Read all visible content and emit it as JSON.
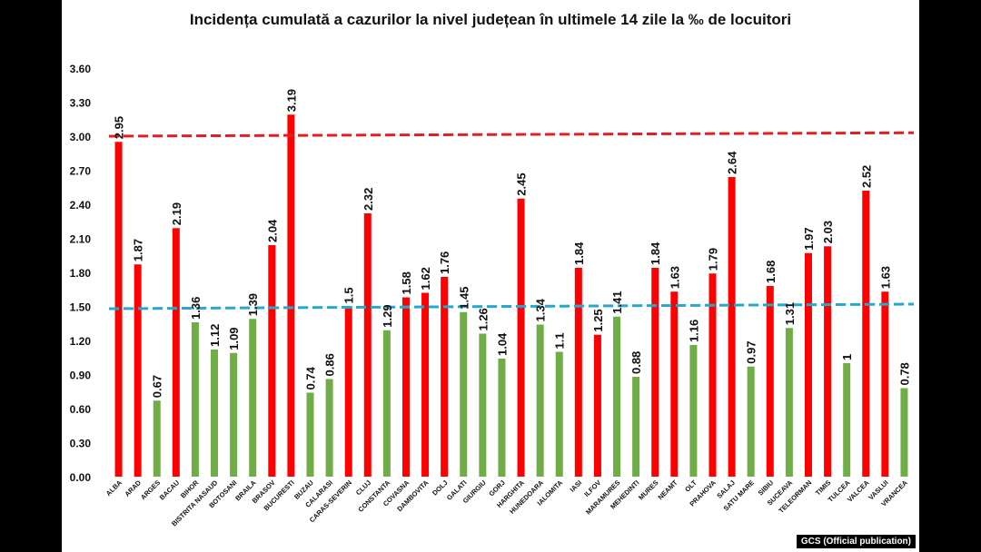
{
  "chart_data": {
    "type": "bar",
    "title": "Incidența cumulată a cazurilor la nivel județean în ultimele 14 zile la ‰ de locuitori",
    "xlabel": "",
    "ylabel": "",
    "ylim": [
      0,
      3.6
    ],
    "y_ticks": [
      "0.00",
      "0.30",
      "0.60",
      "0.90",
      "1.20",
      "1.50",
      "1.80",
      "2.10",
      "2.40",
      "2.70",
      "3.00",
      "3.30",
      "3.60"
    ],
    "categories": [
      "ALBA",
      "ARAD",
      "ARGES",
      "BACAU",
      "BIHOR",
      "BISTRITA NASAUD",
      "BOTOSANI",
      "BRAILA",
      "BRASOV",
      "BUCURESTI",
      "BUZAU",
      "CALARASI",
      "CARAS-SEVERIN",
      "CLUJ",
      "CONSTANTA",
      "COVASNA",
      "DAMBOVITA",
      "DOLJ",
      "GALATI",
      "GIURGIU",
      "GORJ",
      "HARGHITA",
      "HUNEDOARA",
      "IALOMITA",
      "IASI",
      "ILFOV",
      "MARAMURES",
      "MEHEDINTI",
      "MURES",
      "NEAMT",
      "OLT",
      "PRAHOVA",
      "SALAJ",
      "SATU MARE",
      "SIBIU",
      "SUCEAVA",
      "TELEORMAN",
      "TIMIS",
      "TULCEA",
      "VALCEA",
      "VASLUI",
      "VRANCEA"
    ],
    "values": [
      2.95,
      1.87,
      0.67,
      2.19,
      1.36,
      1.12,
      1.09,
      1.39,
      2.04,
      3.19,
      0.74,
      0.86,
      1.5,
      2.32,
      1.29,
      1.58,
      1.62,
      1.76,
      1.45,
      1.26,
      1.04,
      2.45,
      1.34,
      1.1,
      1.84,
      1.25,
      1.41,
      0.88,
      1.84,
      1.63,
      1.16,
      1.79,
      2.64,
      0.97,
      1.68,
      1.31,
      1.97,
      2.03,
      1,
      2.52,
      1.63,
      0.78
    ],
    "value_labels": [
      "2.95",
      "1.87",
      "0.67",
      "2.19",
      "1.36",
      "1.12",
      "1.09",
      "1.39",
      "2.04",
      "3.19",
      "0.74",
      "0.86",
      "1.5",
      "2.32",
      "1.29",
      "1.58",
      "1.62",
      "1.76",
      "1.45",
      "1.26",
      "1.04",
      "2.45",
      "1.34",
      "1.1",
      "1.84",
      "1.25",
      "1.41",
      "0.88",
      "1.84",
      "1.63",
      "1.16",
      "1.79",
      "2.64",
      "0.97",
      "1.68",
      "1.31",
      "1.97",
      "2.03",
      "1",
      "2.52",
      "1.63",
      "0.78"
    ],
    "bar_colors": [
      "red",
      "red",
      "green",
      "red",
      "green",
      "green",
      "green",
      "green",
      "red",
      "red",
      "green",
      "green",
      "red",
      "red",
      "green",
      "red",
      "red",
      "red",
      "green",
      "green",
      "green",
      "red",
      "green",
      "green",
      "red",
      "red",
      "green",
      "green",
      "red",
      "red",
      "green",
      "red",
      "red",
      "green",
      "red",
      "green",
      "red",
      "red",
      "green",
      "red",
      "red",
      "green"
    ],
    "reference_lines": [
      {
        "name": "red-threshold",
        "y_start": 3.0,
        "y_end": 3.03,
        "color": "#e02020",
        "style": "dashed"
      },
      {
        "name": "blue-threshold",
        "y_start": 1.48,
        "y_end": 1.52,
        "color": "#2aa6cc",
        "style": "dashed"
      }
    ],
    "colors": {
      "red": "#ff0000",
      "green": "#70ad47"
    },
    "grid": false,
    "legend": "none"
  },
  "credit": "GCS (Official publication)"
}
